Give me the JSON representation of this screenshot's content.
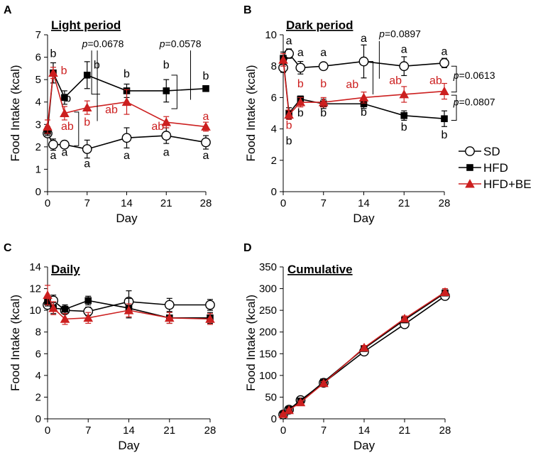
{
  "figure": {
    "legend": {
      "entries": [
        {
          "name": "SD",
          "marker": "circle-open",
          "color": "#000000"
        },
        {
          "name": "HFD",
          "marker": "square-filled",
          "color": "#000000"
        },
        {
          "name": "HFD+BE",
          "marker": "triangle-filled",
          "color": "#cc1f1f"
        }
      ]
    }
  },
  "chart_data": [
    {
      "id": "A",
      "type": "line",
      "panel_letter": "A",
      "title": "Light period",
      "xlabel": "Day",
      "ylabel": "Food Intake (kcal)",
      "xlim": [
        0,
        28
      ],
      "ylim": [
        0,
        7
      ],
      "xticks": [
        0,
        7,
        14,
        21,
        28
      ],
      "yticks": [
        0,
        1,
        2,
        3,
        4,
        5,
        6,
        7
      ],
      "series": [
        {
          "name": "SD",
          "x": [
            0,
            1,
            3,
            7,
            14,
            21,
            28
          ],
          "values": [
            2.6,
            2.1,
            2.1,
            1.9,
            2.4,
            2.5,
            2.2
          ],
          "err": [
            0.15,
            0.25,
            0.15,
            0.4,
            0.45,
            0.35,
            0.3
          ],
          "letters": [
            {
              "x": 1,
              "y": 1.45,
              "t": "a"
            },
            {
              "x": 3,
              "y": 1.6,
              "t": "a"
            },
            {
              "x": 7,
              "y": 1.1,
              "t": "a"
            },
            {
              "x": 14,
              "y": 1.45,
              "t": "a"
            },
            {
              "x": 21,
              "y": 1.6,
              "t": "a"
            },
            {
              "x": 28,
              "y": 1.45,
              "t": "a"
            }
          ]
        },
        {
          "name": "HFD",
          "x": [
            0,
            1,
            3,
            7,
            14,
            21,
            28
          ],
          "values": [
            2.7,
            5.3,
            4.2,
            5.2,
            4.5,
            4.5,
            4.6
          ],
          "err": [
            0.2,
            0.45,
            0.3,
            0.6,
            0.3,
            0.5,
            0.1
          ],
          "letters": [
            {
              "x": 1,
              "y": 6.0,
              "t": "b"
            },
            {
              "x": 3.6,
              "y": 4.0,
              "t": "b"
            },
            {
              "x": 8.7,
              "y": 5.5,
              "t": "b"
            },
            {
              "x": 14,
              "y": 5.1,
              "t": "b"
            },
            {
              "x": 21,
              "y": 5.5,
              "t": "b"
            },
            {
              "x": 28,
              "y": 5.0,
              "t": "b"
            }
          ]
        },
        {
          "name": "HFD+BE",
          "x": [
            0,
            1,
            3,
            7,
            14,
            21,
            28
          ],
          "values": [
            2.9,
            5.3,
            3.5,
            3.75,
            4.0,
            3.1,
            2.9
          ],
          "err": [
            0.3,
            0.25,
            0.3,
            0.3,
            0.55,
            0.25,
            0.2
          ],
          "letters": [
            {
              "x": 2.9,
              "y": 5.25,
              "t": "b"
            },
            {
              "x": 3.5,
              "y": 2.75,
              "t": "ab"
            },
            {
              "x": 7,
              "y": 2.95,
              "t": "b"
            },
            {
              "x": 11.3,
              "y": 3.5,
              "t": "ab"
            },
            {
              "x": 19.5,
              "y": 2.75,
              "t": "ab"
            },
            {
              "x": 28,
              "y": 3.2,
              "t": "a"
            }
          ]
        }
      ],
      "annotations": [
        {
          "label": "p=0.0678",
          "x": 9.8,
          "y": 6.45
        },
        {
          "label": "p=0.0578",
          "x": 23.5,
          "y": 6.45
        }
      ]
    },
    {
      "id": "B",
      "type": "line",
      "panel_letter": "B",
      "title": "Dark period",
      "xlabel": "Day",
      "ylabel": "Food Intake (kcal)",
      "xlim": [
        0,
        28
      ],
      "ylim": [
        0,
        10
      ],
      "xticks": [
        0,
        7,
        14,
        21,
        28
      ],
      "yticks": [
        0,
        2,
        4,
        6,
        8,
        10
      ],
      "series": [
        {
          "name": "SD",
          "x": [
            0,
            1,
            3,
            7,
            14,
            21,
            28
          ],
          "values": [
            7.9,
            8.8,
            7.9,
            8.0,
            8.3,
            8.0,
            8.2
          ],
          "err": [
            0.3,
            0.3,
            0.4,
            0.15,
            1.05,
            0.6,
            0.3
          ],
          "letters": [
            {
              "x": 1,
              "y": 9.4,
              "t": "a"
            },
            {
              "x": 3,
              "y": 8.65,
              "t": "a"
            },
            {
              "x": 7,
              "y": 8.65,
              "t": "a"
            },
            {
              "x": 14,
              "y": 9.55,
              "t": "a"
            },
            {
              "x": 21,
              "y": 8.85,
              "t": "a"
            },
            {
              "x": 28,
              "y": 8.7,
              "t": "a"
            }
          ]
        },
        {
          "name": "HFD",
          "x": [
            0,
            1,
            3,
            7,
            14,
            21,
            28
          ],
          "values": [
            8.5,
            5.0,
            5.9,
            5.6,
            5.6,
            4.85,
            4.65
          ],
          "err": [
            0.4,
            0.35,
            0.2,
            0.3,
            0.3,
            0.3,
            0.5
          ],
          "letters": [
            {
              "x": 1,
              "y": 3.0,
              "t": "b"
            },
            {
              "x": 3,
              "y": 4.8,
              "t": "b"
            },
            {
              "x": 7,
              "y": 4.8,
              "t": "b"
            },
            {
              "x": 14,
              "y": 4.85,
              "t": "b"
            },
            {
              "x": 21,
              "y": 3.9,
              "t": "b"
            },
            {
              "x": 28,
              "y": 3.4,
              "t": "b"
            }
          ]
        },
        {
          "name": "HFD+BE",
          "x": [
            0,
            1,
            3,
            7,
            14,
            21,
            28
          ],
          "values": [
            8.4,
            4.9,
            5.7,
            5.7,
            6.0,
            6.2,
            6.4
          ],
          "err": [
            0.4,
            0.3,
            0.3,
            0.3,
            0.35,
            0.5,
            0.5
          ],
          "letters": [
            {
              "x": 1,
              "y": 4.0,
              "t": "b"
            },
            {
              "x": 3,
              "y": 6.65,
              "t": "b"
            },
            {
              "x": 7,
              "y": 6.65,
              "t": "b"
            },
            {
              "x": 12,
              "y": 6.6,
              "t": "ab"
            },
            {
              "x": 19.5,
              "y": 6.85,
              "t": "ab"
            },
            {
              "x": 26.5,
              "y": 6.85,
              "t": "ab"
            }
          ]
        }
      ],
      "annotations": [
        {
          "label": "p=0.0897",
          "x": 20.3,
          "y": 9.85
        },
        {
          "label": "p=0.0613",
          "x": 33.2,
          "y": 7.2
        },
        {
          "label": "p=0.0807",
          "x": 33.2,
          "y": 5.5
        }
      ]
    },
    {
      "id": "C",
      "type": "line",
      "panel_letter": "C",
      "title": "Daily",
      "xlabel": "Day",
      "ylabel": "Food Intake (kcal)",
      "xlim": [
        0,
        28
      ],
      "ylim": [
        0,
        14
      ],
      "xticks": [
        0,
        7,
        14,
        21,
        28
      ],
      "yticks": [
        0,
        2,
        4,
        6,
        8,
        10,
        12,
        14
      ],
      "series": [
        {
          "name": "SD",
          "x": [
            0,
            1,
            3,
            7,
            14,
            21,
            28
          ],
          "values": [
            10.5,
            10.9,
            10.0,
            9.9,
            10.8,
            10.5,
            10.5
          ],
          "err": [
            0.3,
            0.5,
            0.3,
            0.4,
            1.0,
            0.6,
            0.5
          ],
          "letters": []
        },
        {
          "name": "HFD",
          "x": [
            0,
            1,
            3,
            7,
            14,
            21,
            28
          ],
          "values": [
            10.8,
            10.2,
            10.1,
            10.9,
            10.2,
            9.3,
            9.3
          ],
          "err": [
            0.4,
            0.5,
            0.4,
            0.4,
            0.9,
            0.5,
            0.5
          ],
          "letters": []
        },
        {
          "name": "HFD+BE",
          "x": [
            0,
            1,
            3,
            7,
            14,
            21,
            28
          ],
          "values": [
            11.4,
            10.2,
            9.2,
            9.3,
            10.0,
            9.3,
            9.2
          ],
          "err": [
            0.9,
            0.6,
            0.5,
            0.5,
            0.6,
            0.5,
            0.5
          ],
          "letters": []
        }
      ],
      "annotations": []
    },
    {
      "id": "D",
      "type": "line",
      "panel_letter": "D",
      "title": "Cumulative",
      "xlabel": "Day",
      "ylabel": "Food Intake (kcal)",
      "xlim": [
        0,
        28
      ],
      "ylim": [
        0,
        350
      ],
      "xticks": [
        0,
        7,
        14,
        21,
        28
      ],
      "yticks": [
        0,
        50,
        100,
        150,
        200,
        250,
        300,
        350
      ],
      "series": [
        {
          "name": "SD",
          "x": [
            0,
            1,
            3,
            7,
            14,
            21,
            28
          ],
          "values": [
            10,
            21,
            43,
            83,
            155,
            218,
            283
          ],
          "err": [
            1,
            2,
            3,
            4,
            5,
            6,
            6
          ],
          "letters": []
        },
        {
          "name": "HFD",
          "x": [
            0,
            1,
            3,
            7,
            14,
            21,
            28
          ],
          "values": [
            11,
            22,
            41,
            85,
            162,
            228,
            290
          ],
          "err": [
            1,
            2,
            3,
            4,
            5,
            6,
            7
          ],
          "letters": []
        },
        {
          "name": "HFD+BE",
          "x": [
            0,
            1,
            3,
            7,
            14,
            21,
            28
          ],
          "values": [
            11,
            20,
            38,
            82,
            164,
            231,
            292
          ],
          "err": [
            1,
            2,
            3,
            4,
            5,
            6,
            8
          ],
          "letters": []
        }
      ],
      "annotations": []
    }
  ]
}
